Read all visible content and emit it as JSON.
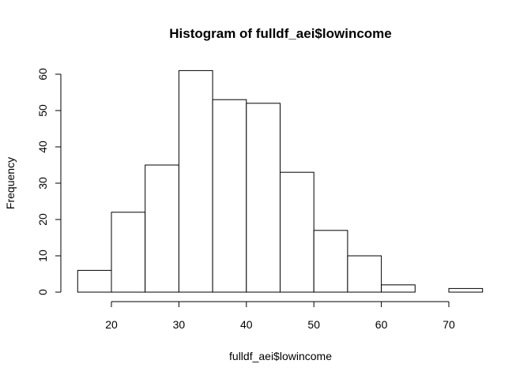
{
  "chart_data": {
    "type": "bar",
    "title": "Histogram of fulldf_aei$lowincome",
    "xlabel": "fulldf_aei$lowincome",
    "ylabel": "Frequency",
    "bins": [
      {
        "from": 15,
        "to": 20,
        "count": 6
      },
      {
        "from": 20,
        "to": 25,
        "count": 22
      },
      {
        "from": 25,
        "to": 30,
        "count": 35
      },
      {
        "from": 30,
        "to": 35,
        "count": 61
      },
      {
        "from": 35,
        "to": 40,
        "count": 53
      },
      {
        "from": 40,
        "to": 45,
        "count": 52
      },
      {
        "from": 45,
        "to": 50,
        "count": 33
      },
      {
        "from": 50,
        "to": 55,
        "count": 17
      },
      {
        "from": 55,
        "to": 60,
        "count": 10
      },
      {
        "from": 60,
        "to": 65,
        "count": 2
      },
      {
        "from": 65,
        "to": 70,
        "count": 0
      },
      {
        "from": 70,
        "to": 75,
        "count": 1
      }
    ],
    "x_ticks": [
      20,
      30,
      40,
      50,
      60,
      70
    ],
    "y_ticks": [
      0,
      10,
      20,
      30,
      40,
      50,
      60
    ],
    "xlim": [
      15,
      75
    ],
    "ylim": [
      0,
      60
    ],
    "grid": false,
    "bar_fill": "#ffffff",
    "bar_stroke": "#000000"
  }
}
